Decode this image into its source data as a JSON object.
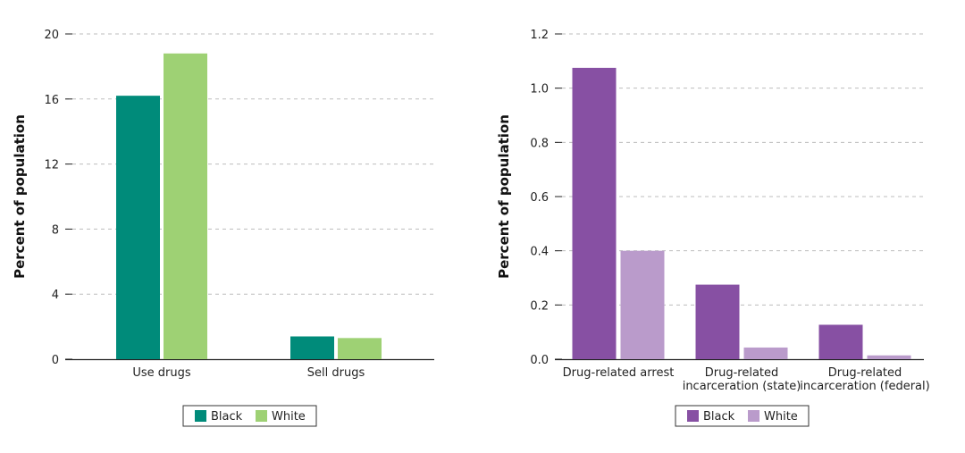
{
  "chart_data": [
    {
      "type": "bar",
      "ylabel": "Percent of population",
      "ylim": [
        0,
        20
      ],
      "yticks": [
        0,
        4,
        8,
        12,
        16,
        20
      ],
      "ytick_labels": [
        "0",
        "4",
        "8",
        "12",
        "16",
        "20"
      ],
      "grid": true,
      "categories": [
        "Use drugs",
        "Sell drugs"
      ],
      "series": [
        {
          "name": "Black",
          "color": "#008B7A",
          "values": [
            16.2,
            1.4
          ]
        },
        {
          "name": "White",
          "color": "#9ED174",
          "values": [
            18.8,
            1.3
          ]
        }
      ],
      "legend_position": "bottom-center"
    },
    {
      "type": "bar",
      "ylabel": "Percent of population",
      "ylim": [
        0,
        1.2
      ],
      "yticks": [
        0,
        0.2,
        0.4,
        0.6,
        0.8,
        1.0,
        1.2
      ],
      "ytick_labels": [
        "0.0",
        "0.2",
        "0.4",
        "0.6",
        "0.8",
        "1.0",
        "1.2"
      ],
      "grid": true,
      "categories": [
        [
          "Drug-related arrest"
        ],
        [
          "Drug-related",
          "incarceration (state)"
        ],
        [
          "Drug-related",
          "incarceration (federal)"
        ]
      ],
      "series": [
        {
          "name": "Black",
          "color": "#8750A3",
          "values": [
            1.075,
            0.275,
            0.127
          ]
        },
        {
          "name": "White",
          "color": "#BA9BCB",
          "values": [
            0.4,
            0.043,
            0.014
          ]
        }
      ],
      "legend_position": "bottom-center"
    }
  ]
}
